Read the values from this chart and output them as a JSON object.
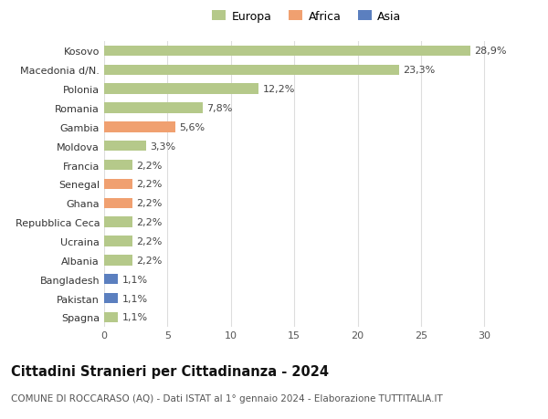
{
  "categories": [
    "Kosovo",
    "Macedonia d/N.",
    "Polonia",
    "Romania",
    "Gambia",
    "Moldova",
    "Francia",
    "Senegal",
    "Ghana",
    "Repubblica Ceca",
    "Ucraina",
    "Albania",
    "Bangladesh",
    "Pakistan",
    "Spagna"
  ],
  "values": [
    28.9,
    23.3,
    12.2,
    7.8,
    5.6,
    3.3,
    2.2,
    2.2,
    2.2,
    2.2,
    2.2,
    2.2,
    1.1,
    1.1,
    1.1
  ],
  "continents": [
    "Europa",
    "Europa",
    "Europa",
    "Europa",
    "Africa",
    "Europa",
    "Europa",
    "Africa",
    "Africa",
    "Europa",
    "Europa",
    "Europa",
    "Asia",
    "Asia",
    "Europa"
  ],
  "continent_colors": {
    "Europa": "#b5c98a",
    "Africa": "#f0a070",
    "Asia": "#5b7fbf"
  },
  "legend_entries": [
    "Europa",
    "Africa",
    "Asia"
  ],
  "legend_colors": [
    "#b5c98a",
    "#f0a070",
    "#5b7fbf"
  ],
  "title": "Cittadini Stranieri per Cittadinanza - 2024",
  "subtitle": "COMUNE DI ROCCARASO (AQ) - Dati ISTAT al 1° gennaio 2024 - Elaborazione TUTTITALIA.IT",
  "xlim": [
    0,
    32
  ],
  "xticks": [
    0,
    5,
    10,
    15,
    20,
    25,
    30
  ],
  "background_color": "#ffffff",
  "grid_color": "#dddddd",
  "bar_height": 0.55,
  "label_fontsize": 8,
  "tick_fontsize": 8,
  "title_fontsize": 10.5,
  "subtitle_fontsize": 7.5
}
